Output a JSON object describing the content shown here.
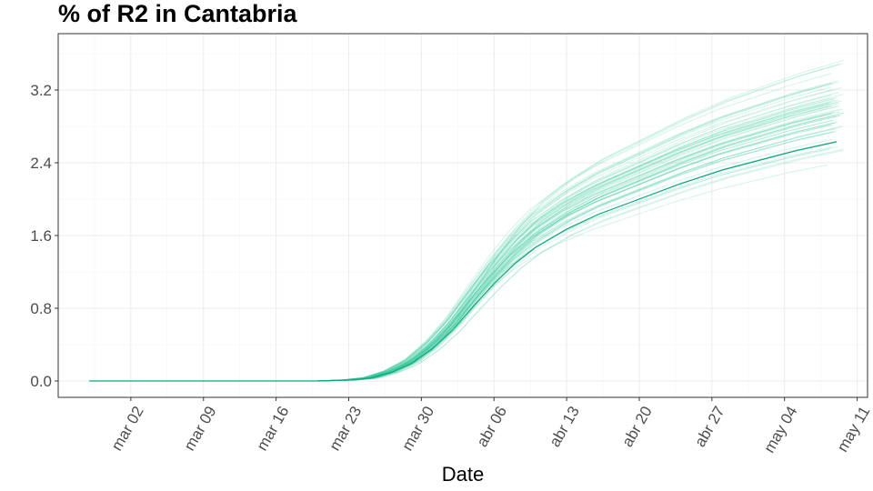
{
  "chart_data": {
    "type": "line",
    "title": "% of R2 in  Cantabria",
    "xlabel": "Date",
    "ylabel": "",
    "x_axis": {
      "type": "date",
      "range": [
        "2020-02-24",
        "2020-05-12"
      ],
      "ticks": [
        "2020-03-02",
        "2020-03-09",
        "2020-03-16",
        "2020-03-23",
        "2020-03-30",
        "2020-04-06",
        "2020-04-13",
        "2020-04-20",
        "2020-04-27",
        "2020-05-04",
        "2020-05-11"
      ],
      "tick_labels": [
        "mar 02",
        "mar 09",
        "mar 16",
        "mar 23",
        "mar 30",
        "abr 06",
        "abr 13",
        "abr 20",
        "abr 27",
        "may 04",
        "may 11"
      ]
    },
    "y_axis": {
      "range": [
        -0.18,
        3.82
      ],
      "ticks": [
        0.0,
        0.8,
        1.6,
        2.4,
        3.2
      ],
      "tick_labels": [
        "0.0",
        "0.8",
        "1.6",
        "2.4",
        "3.2"
      ]
    },
    "grid": true,
    "legend": "none",
    "colors": {
      "main_line": "#0aa57f",
      "ensemble_lines": "#35c99b"
    },
    "main_series": {
      "x": [
        "2020-02-27",
        "2020-03-04",
        "2020-03-10",
        "2020-03-16",
        "2020-03-20",
        "2020-03-23",
        "2020-03-25",
        "2020-03-27",
        "2020-03-29",
        "2020-03-31",
        "2020-04-02",
        "2020-04-04",
        "2020-04-06",
        "2020-04-08",
        "2020-04-10",
        "2020-04-13",
        "2020-04-16",
        "2020-04-20",
        "2020-04-24",
        "2020-04-28",
        "2020-05-02",
        "2020-05-05",
        "2020-05-09"
      ],
      "y": [
        0,
        0,
        0,
        0,
        0,
        0.01,
        0.03,
        0.09,
        0.19,
        0.35,
        0.56,
        0.82,
        1.07,
        1.29,
        1.47,
        1.67,
        1.83,
        2.0,
        2.17,
        2.32,
        2.44,
        2.53,
        2.63
      ]
    },
    "ensemble": {
      "count": 60,
      "final_value_range": [
        2.25,
        3.65
      ]
    }
  }
}
